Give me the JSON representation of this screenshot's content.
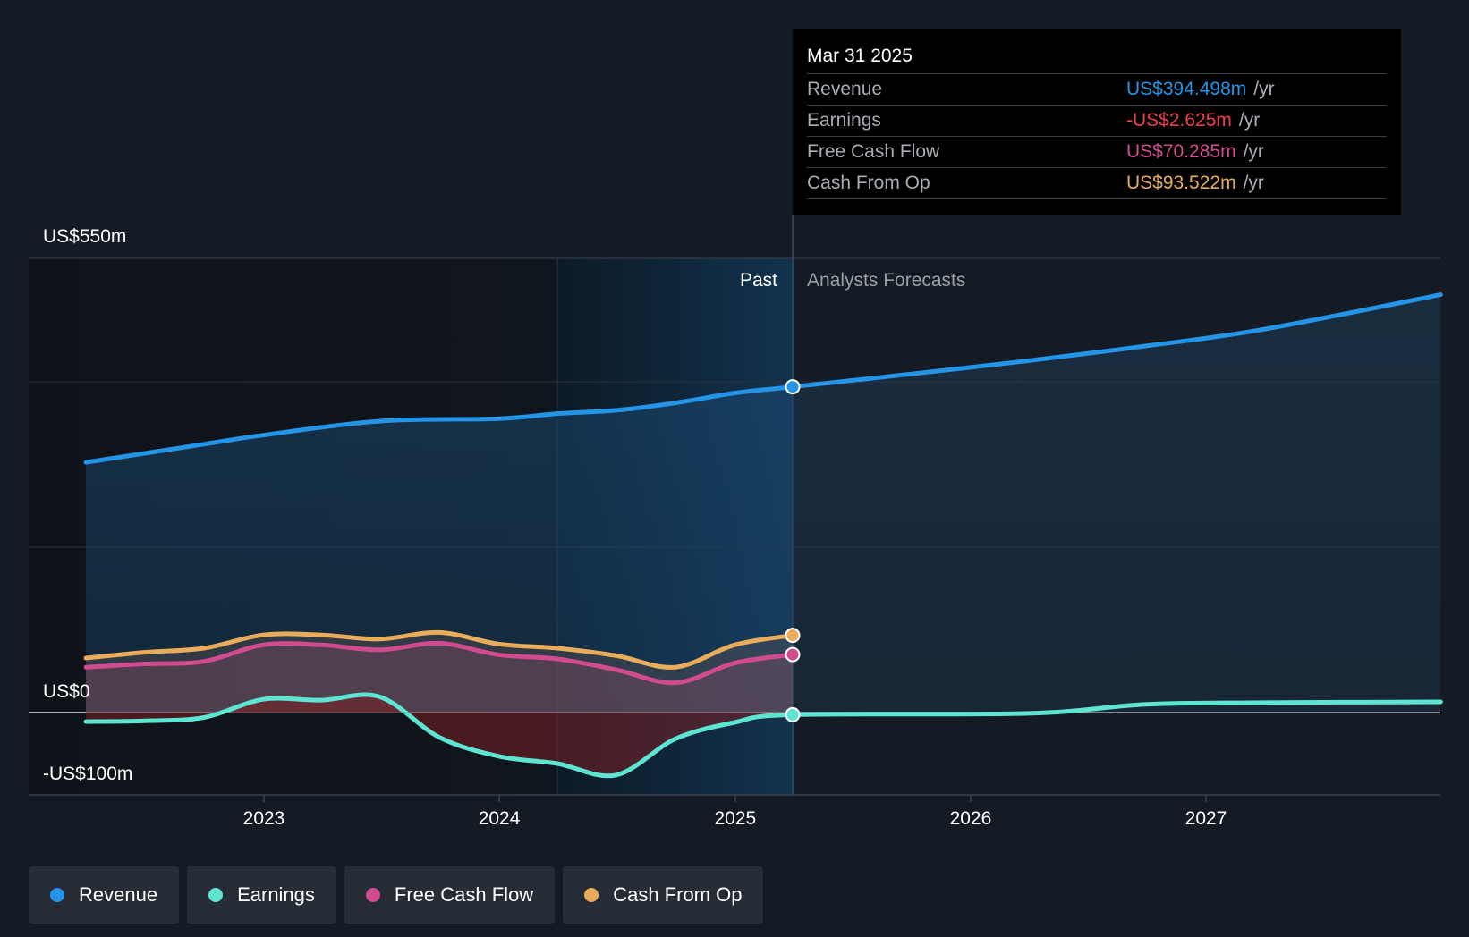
{
  "chart_data": {
    "type": "line",
    "x_ticks": [
      "2023",
      "2024",
      "2025",
      "2026",
      "2027"
    ],
    "y_labels": {
      "top": "US$550m",
      "zero": "US$0",
      "bottom": "-US$100m"
    },
    "ylim": [
      -100,
      550
    ],
    "past_label": "Past",
    "forecast_label": "Analysts Forecasts",
    "divider_date": "2025-03-31",
    "series": [
      {
        "name": "Revenue",
        "color": "#2394e6",
        "points": [
          [
            "2022-03-31",
            303
          ],
          [
            "2022-09-30",
            325
          ],
          [
            "2022-12-31",
            336
          ],
          [
            "2023-06-30",
            353
          ],
          [
            "2023-12-31",
            356
          ],
          [
            "2024-03-31",
            362
          ],
          [
            "2024-06-30",
            366
          ],
          [
            "2024-09-30",
            375
          ],
          [
            "2024-12-31",
            387
          ],
          [
            "2025-03-31",
            394.498
          ],
          [
            "2025-09-30",
            410
          ],
          [
            "2026-03-31",
            426
          ],
          [
            "2026-09-30",
            444
          ],
          [
            "2027-03-31",
            464
          ],
          [
            "2027-12-31",
            506
          ]
        ]
      },
      {
        "name": "Earnings",
        "color": "#5ee5d1",
        "points": [
          [
            "2022-03-31",
            -11
          ],
          [
            "2022-06-30",
            -10
          ],
          [
            "2022-09-30",
            -6
          ],
          [
            "2022-12-31",
            16
          ],
          [
            "2023-03-31",
            15
          ],
          [
            "2023-06-30",
            19
          ],
          [
            "2023-09-30",
            -30
          ],
          [
            "2023-12-31",
            -53
          ],
          [
            "2024-03-31",
            -62
          ],
          [
            "2024-06-30",
            -76
          ],
          [
            "2024-09-30",
            -32
          ],
          [
            "2024-12-31",
            -12
          ],
          [
            "2025-03-31",
            -2.625
          ],
          [
            "2026-03-31",
            -1
          ],
          [
            "2026-09-30",
            10
          ],
          [
            "2027-03-31",
            12
          ],
          [
            "2027-12-31",
            13
          ]
        ]
      },
      {
        "name": "Free Cash Flow",
        "color": "#d14b8f",
        "points": [
          [
            "2022-03-31",
            55
          ],
          [
            "2022-06-30",
            59
          ],
          [
            "2022-09-30",
            62
          ],
          [
            "2022-12-31",
            82
          ],
          [
            "2023-03-31",
            82
          ],
          [
            "2023-06-30",
            76
          ],
          [
            "2023-09-30",
            84
          ],
          [
            "2023-12-31",
            70
          ],
          [
            "2024-03-31",
            65
          ],
          [
            "2024-06-30",
            52
          ],
          [
            "2024-09-30",
            36
          ],
          [
            "2024-12-31",
            60
          ],
          [
            "2025-03-31",
            70.285
          ]
        ]
      },
      {
        "name": "Cash From Op",
        "color": "#e8ac5b",
        "points": [
          [
            "2022-03-31",
            66
          ],
          [
            "2022-06-30",
            73
          ],
          [
            "2022-09-30",
            78
          ],
          [
            "2022-12-31",
            94
          ],
          [
            "2023-03-31",
            94
          ],
          [
            "2023-06-30",
            89
          ],
          [
            "2023-09-30",
            97
          ],
          [
            "2023-12-31",
            83
          ],
          [
            "2024-03-31",
            78
          ],
          [
            "2024-06-30",
            69
          ],
          [
            "2024-09-30",
            55
          ],
          [
            "2024-12-31",
            82
          ],
          [
            "2025-03-31",
            93.522
          ]
        ]
      }
    ]
  },
  "tooltip": {
    "date": "Mar 31 2025",
    "unit": "/yr",
    "rows": [
      {
        "label": "Revenue",
        "value": "US$394.498m",
        "color": "#2394e6"
      },
      {
        "label": "Earnings",
        "value": "-US$2.625m",
        "color": "#e8414a"
      },
      {
        "label": "Free Cash Flow",
        "value": "US$70.285m",
        "color": "#d14b8f"
      },
      {
        "label": "Cash From Op",
        "value": "US$93.522m",
        "color": "#e8ac5b"
      }
    ]
  },
  "legend": [
    {
      "label": "Revenue",
      "color": "#2394e6"
    },
    {
      "label": "Earnings",
      "color": "#5ee5d1"
    },
    {
      "label": "Free Cash Flow",
      "color": "#d14b8f"
    },
    {
      "label": "Cash From Op",
      "color": "#e8ac5b"
    }
  ]
}
